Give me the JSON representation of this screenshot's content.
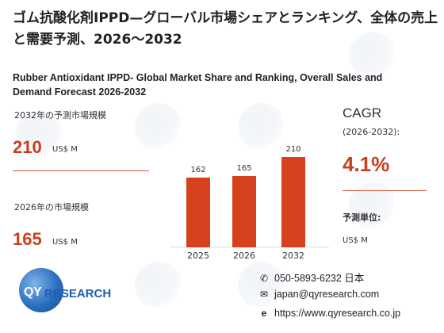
{
  "title_jp": "ゴム抗酸化剤IPPD—グローバル市場シェアとランキング、全体の売上と需要予測、2026～2032",
  "title_en": "Rubber Antioxidant IPPD- Global Market Share and Ranking, Overall Sales and Demand Forecast 2026-2032",
  "left_panel": {
    "label_2032": "2032年の予測市場規模",
    "value_2032": "210",
    "unit_2032": "US$ M",
    "label_2026": "2026年の市場規模",
    "value_2026": "165",
    "unit_2026": "US$ M"
  },
  "chart_data": {
    "type": "bar",
    "categories": [
      "2025",
      "2026",
      "2032"
    ],
    "values": [
      162,
      165,
      210
    ],
    "ylim": [
      0,
      230
    ],
    "bar_color": "#d6421d"
  },
  "right_panel": {
    "cagr_label": "CAGR",
    "cagr_period": "(2026-2032):",
    "cagr_value": "4.1%",
    "unit_label": "予測単位:",
    "unit_value": "US$ M"
  },
  "logo": {
    "qy": "QY",
    "research": "RESEARCH"
  },
  "contact": {
    "phone": "050-5893-6232 日本",
    "email": "japan@qyresearch.com",
    "website": "https://www.qyresearch.co.jp"
  },
  "icons": {
    "phone": "phone-icon",
    "email": "email-icon",
    "web": "web-icon"
  },
  "colors": {
    "accent": "#c8401f",
    "bar": "#d6421d",
    "brand_blue": "#1d5eb5"
  }
}
